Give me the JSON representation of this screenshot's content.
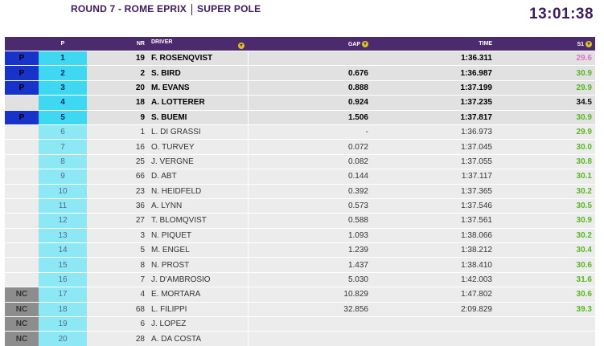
{
  "header": {
    "title_left": "ROUND 7 - ROME EPRIX",
    "title_right": "SUPER POLE",
    "clock": "13:01:38"
  },
  "table": {
    "columns": {
      "status": "",
      "pos": "P",
      "nr": "NR",
      "driver": "DRIVER",
      "gap": "GAP",
      "time": "TIME",
      "s1": "S1"
    },
    "colors": {
      "s1_green": "#57b81e",
      "s1_purple": "#e66ccf",
      "s1_black": "#111111"
    },
    "rows": [
      {
        "status": "P",
        "pos": "1",
        "nr": "19",
        "driver": "F. ROSENQVIST",
        "gap": "",
        "time": "1:36.311",
        "s1": "29.6",
        "s1_color": "#e66ccf",
        "group": "top"
      },
      {
        "status": "P",
        "pos": "2",
        "nr": "2",
        "driver": "S. BIRD",
        "gap": "0.676",
        "time": "1:36.987",
        "s1": "30.9",
        "s1_color": "#57b81e",
        "group": "top"
      },
      {
        "status": "P",
        "pos": "3",
        "nr": "20",
        "driver": "M. EVANS",
        "gap": "0.888",
        "time": "1:37.199",
        "s1": "29.9",
        "s1_color": "#57b81e",
        "group": "top"
      },
      {
        "status": "",
        "pos": "4",
        "nr": "18",
        "driver": "A. LOTTERER",
        "gap": "0.924",
        "time": "1:37.235",
        "s1": "34.5",
        "s1_color": "#111111",
        "group": "top"
      },
      {
        "status": "P",
        "pos": "5",
        "nr": "9",
        "driver": "S. BUEMI",
        "gap": "1.506",
        "time": "1:37.817",
        "s1": "30.9",
        "s1_color": "#57b81e",
        "group": "top"
      },
      {
        "status": "",
        "pos": "6",
        "nr": "1",
        "driver": "L. DI GRASSI",
        "gap": "-",
        "time": "1:36.973",
        "s1": "29.9",
        "s1_color": "#57b81e",
        "group": "rest"
      },
      {
        "status": "",
        "pos": "7",
        "nr": "16",
        "driver": "O. TURVEY",
        "gap": "0.072",
        "time": "1:37.045",
        "s1": "30.0",
        "s1_color": "#57b81e",
        "group": "rest"
      },
      {
        "status": "",
        "pos": "8",
        "nr": "25",
        "driver": "J. VERGNE",
        "gap": "0.082",
        "time": "1:37.055",
        "s1": "30.8",
        "s1_color": "#57b81e",
        "group": "rest"
      },
      {
        "status": "",
        "pos": "9",
        "nr": "66",
        "driver": "D. ABT",
        "gap": "0.144",
        "time": "1:37.117",
        "s1": "30.1",
        "s1_color": "#57b81e",
        "group": "rest"
      },
      {
        "status": "",
        "pos": "10",
        "nr": "23",
        "driver": "N. HEIDFELD",
        "gap": "0.392",
        "time": "1:37.365",
        "s1": "30.2",
        "s1_color": "#57b81e",
        "group": "rest"
      },
      {
        "status": "",
        "pos": "11",
        "nr": "36",
        "driver": "A. LYNN",
        "gap": "0.573",
        "time": "1:37.546",
        "s1": "30.5",
        "s1_color": "#57b81e",
        "group": "rest"
      },
      {
        "status": "",
        "pos": "12",
        "nr": "27",
        "driver": "T. BLOMQVIST",
        "gap": "0.588",
        "time": "1:37.561",
        "s1": "30.9",
        "s1_color": "#57b81e",
        "group": "rest"
      },
      {
        "status": "",
        "pos": "13",
        "nr": "3",
        "driver": "N. PIQUET",
        "gap": "1.093",
        "time": "1:38.066",
        "s1": "30.2",
        "s1_color": "#57b81e",
        "group": "rest"
      },
      {
        "status": "",
        "pos": "14",
        "nr": "5",
        "driver": "M. ENGEL",
        "gap": "1.239",
        "time": "1:38.212",
        "s1": "30.4",
        "s1_color": "#57b81e",
        "group": "rest"
      },
      {
        "status": "",
        "pos": "15",
        "nr": "8",
        "driver": "N. PROST",
        "gap": "1.437",
        "time": "1:38.410",
        "s1": "30.6",
        "s1_color": "#57b81e",
        "group": "rest"
      },
      {
        "status": "",
        "pos": "16",
        "nr": "7",
        "driver": "J. D'AMBROSIO",
        "gap": "5.030",
        "time": "1:42.003",
        "s1": "31.6",
        "s1_color": "#57b81e",
        "group": "rest"
      },
      {
        "status": "NC",
        "pos": "17",
        "nr": "4",
        "driver": "E. MORTARA",
        "gap": "10.829",
        "time": "1:47.802",
        "s1": "30.6",
        "s1_color": "#57b81e",
        "group": "rest"
      },
      {
        "status": "NC",
        "pos": "18",
        "nr": "68",
        "driver": "L. FILIPPI",
        "gap": "32.856",
        "time": "2:09.829",
        "s1": "39.3",
        "s1_color": "#57b81e",
        "group": "rest"
      },
      {
        "status": "NC",
        "pos": "19",
        "nr": "6",
        "driver": "J. LOPEZ",
        "gap": "",
        "time": "",
        "s1": "",
        "s1_color": "#57b81e",
        "group": "rest"
      },
      {
        "status": "NC",
        "pos": "20",
        "nr": "28",
        "driver": "A. DA COSTA",
        "gap": "",
        "time": "",
        "s1": "",
        "s1_color": "#57b81e",
        "group": "rest"
      }
    ]
  }
}
